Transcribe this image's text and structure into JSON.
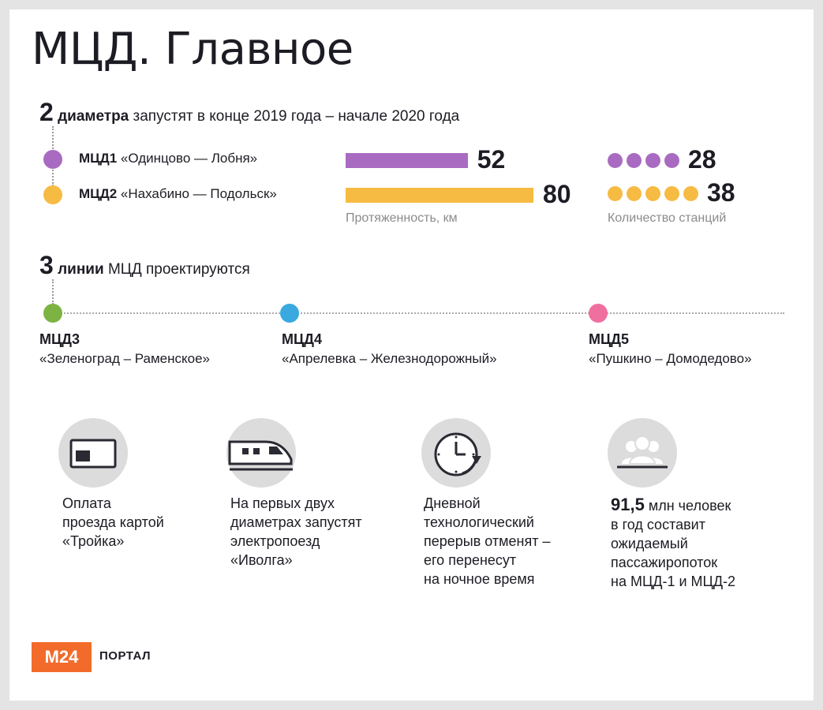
{
  "title": "МЦД. Главное",
  "diameters": {
    "count": "2",
    "bold": "диаметра",
    "text": "запустят в конце 2019 года – начале 2020 года"
  },
  "chart_data": [
    {
      "type": "bar",
      "categories": [
        "МЦД1 «Одинцово — Лобня»",
        "МЦД2 «Нахабино — Подольск»"
      ],
      "values": [
        52,
        80
      ],
      "xlabel": "Протяженность, км",
      "colors": [
        "#a96bc1",
        "#f6bb43"
      ]
    },
    {
      "type": "bar",
      "categories": [
        "МЦД1 «Одинцово — Лобня»",
        "МЦД2 «Нахабино — Подольск»"
      ],
      "values": [
        28,
        38
      ],
      "xlabel": "Количество станций",
      "colors": [
        "#a96bc1",
        "#f6bb43"
      ]
    }
  ],
  "routes": [
    {
      "name": "МЦД1",
      "desc": "«Одинцово — Лобня»",
      "color": "#a96bc1"
    },
    {
      "name": "МЦД2",
      "desc": "«Нахабино — Подольск»",
      "color": "#f6bb43"
    }
  ],
  "lines": {
    "count": "3",
    "bold": "линии",
    "text": "МЦД проектируются",
    "items": [
      {
        "name": "МЦД3",
        "desc": "«Зеленоград – Раменское»",
        "color": "#7cb342"
      },
      {
        "name": "МЦД4",
        "desc": "«Апрелевка – Железнодорожный»",
        "color": "#39a9e0"
      },
      {
        "name": "МЦД5",
        "desc": "«Пушкино – Домодедово»",
        "color": "#ef6f9f"
      }
    ]
  },
  "features": [
    {
      "icon": "card-icon",
      "text": "Оплата\nпроезда картой\n«Тройка»"
    },
    {
      "icon": "train-icon",
      "text": "На первых двух\nдиаметрах запустят\nэлектропоезд\n«Иволга»"
    },
    {
      "icon": "clock-icon",
      "text": "Дневной\nтехнологический\nперерыв отменят –\nего перенесут\nна ночное время"
    },
    {
      "icon": "people-icon",
      "big": "91,5",
      "first": " млн человек",
      "text": "в год составит\nожидаемый\nпассажиропоток\nна МЦД-1 и МЦД-2"
    }
  ],
  "footer": {
    "logo": "М24",
    "portal": "ПОРТАЛ"
  }
}
